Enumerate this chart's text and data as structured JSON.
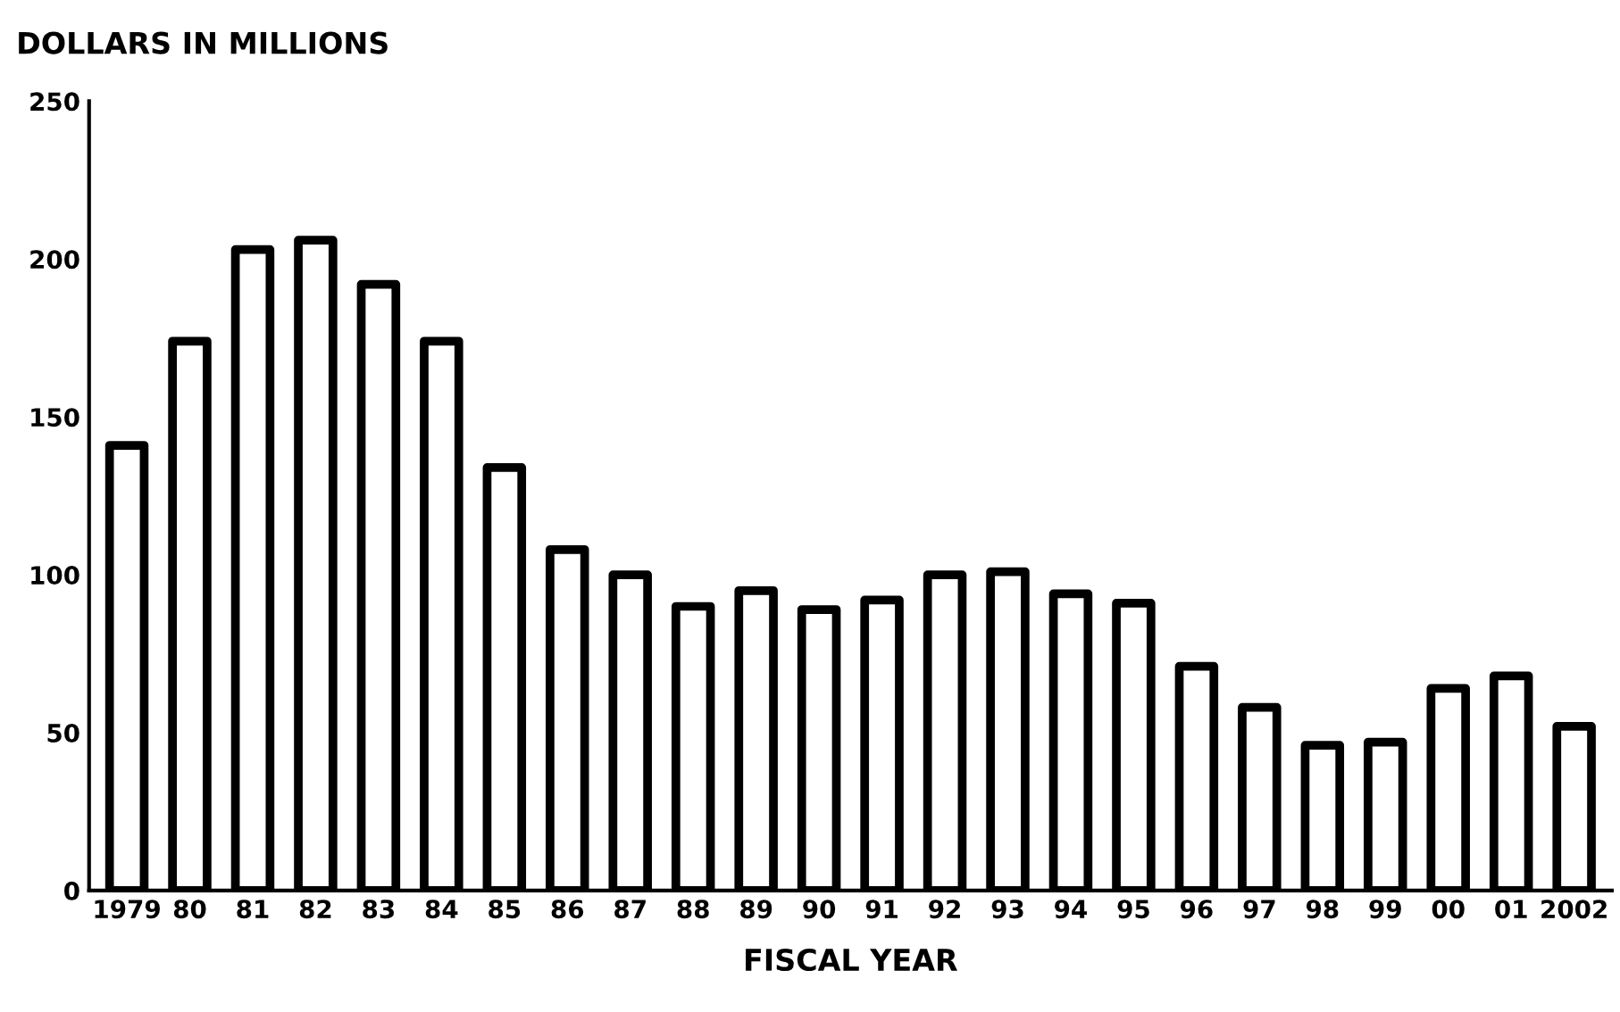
{
  "chart_data": {
    "type": "bar",
    "ylabel": "DOLLARS IN MILLIONS",
    "xlabel": "FISCAL YEAR",
    "categories": [
      "1979",
      "80",
      "81",
      "82",
      "83",
      "84",
      "85",
      "86",
      "87",
      "88",
      "89",
      "90",
      "91",
      "92",
      "93",
      "94",
      "95",
      "96",
      "97",
      "98",
      "99",
      "00",
      "01",
      "2002"
    ],
    "values": [
      141,
      174,
      203,
      206,
      192,
      174,
      134,
      108,
      100,
      90,
      95,
      89,
      92,
      100,
      101,
      94,
      91,
      71,
      58,
      46,
      47,
      64,
      68,
      52
    ],
    "color": "#ffffff",
    "ylim": [
      0,
      250
    ],
    "yticks": [
      0,
      50,
      100,
      150,
      200,
      250
    ],
    "grid": false
  }
}
